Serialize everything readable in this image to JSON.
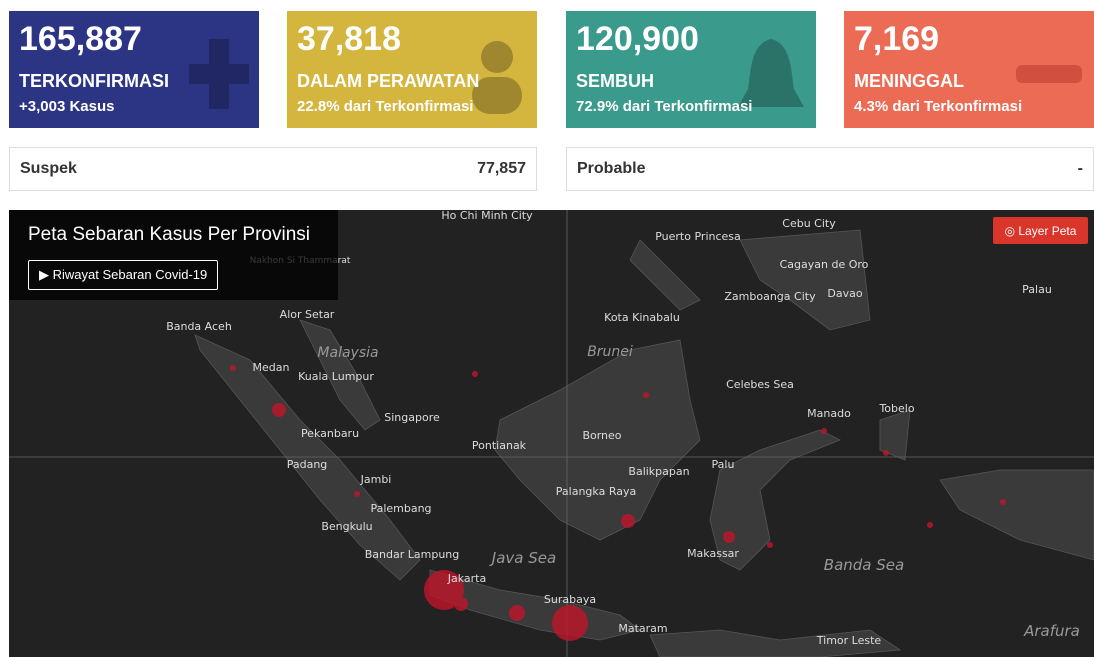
{
  "cards": [
    {
      "number": "165,887",
      "label": "TERKONFIRMASI",
      "sub": "+3,003 Kasus"
    },
    {
      "number": "37,818",
      "label": "DALAM PERAWATAN",
      "sub": "22.8% dari Terkonfirmasi"
    },
    {
      "number": "120,900",
      "label": "SEMBUH",
      "sub": "72.9% dari Terkonfirmasi"
    },
    {
      "number": "7,169",
      "label": "MENINGGAL",
      "sub": "4.3% dari Terkonfirmasi"
    }
  ],
  "rows": [
    {
      "label": "Suspek",
      "value": "77,857"
    },
    {
      "label": "Probable",
      "value": "-"
    }
  ],
  "map": {
    "title": "Peta Sebaran Kasus Per Provinsi",
    "button": "▶ Riwayat Sebaran Covid-19",
    "layer_button": "◎ Layer Peta",
    "labels": [
      "Ho Chi Minh City",
      "Puerto Princesa",
      "Cebu City",
      "Cagayan de Oro",
      "Davao",
      "Zamboanga City",
      "Palau",
      "Nakhon Si Thammarat",
      "Banda Aceh",
      "Alor Setar",
      "Kota Kinabalu",
      "Malaysia",
      "Brunei",
      "Medan",
      "Kuala Lumpur",
      "Celebes Sea",
      "Manado",
      "Tobelo",
      "Singapore",
      "Pekanbaru",
      "Borneo",
      "Pontianak",
      "Palu",
      "Padang",
      "Balikpapan",
      "Jambi",
      "Palangka Raya",
      "Palembang",
      "Bengkulu",
      "Bandar Lampung",
      "Makassar",
      "Java Sea",
      "Banda Sea",
      "Jakarta",
      "Surabaya",
      "Mataram",
      "Timor Leste",
      "Arafura"
    ]
  }
}
